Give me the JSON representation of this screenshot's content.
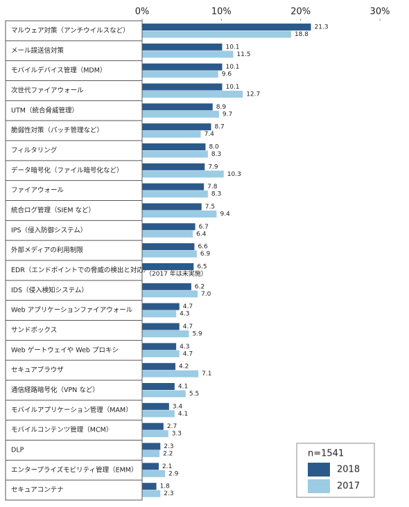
{
  "chart_data": {
    "type": "bar",
    "orientation": "horizontal",
    "categories": [
      "マルウェア対策（アンチウイルスなど）",
      "メール誤送信対策",
      "モバイルデバイス管理（MDM）",
      "次世代ファイアウォール",
      "UTM（統合脅威管理）",
      "脆弱性対策（パッチ管理など）",
      "フィルタリング",
      "データ暗号化（ファイル暗号化など）",
      "ファイアウォール",
      "統合ログ管理（SIEM など）",
      "IPS（侵入防御システム）",
      "外部メディアの利用制限",
      "EDR（エンドポイントでの脅威の検出と対応）",
      "IDS（侵入検知システム）",
      "Web アプリケーションファイアウォール",
      "サンドボックス",
      "Web ゲートウェイや Web プロキシ",
      "セキュアブラウザ",
      "通信経路暗号化（VPN など）",
      "モバイルアプリケーション管理（MAM）",
      "モバイルコンテンツ管理（MCM）",
      "DLP",
      "エンタープライズモビリティ管理（EMM）",
      "セキュアコンテナ"
    ],
    "series": [
      {
        "name": "2018",
        "color": "#2b5a8a",
        "values": [
          21.3,
          10.1,
          10.1,
          10.1,
          8.9,
          8.7,
          8.0,
          7.9,
          7.8,
          7.5,
          6.7,
          6.6,
          6.5,
          6.2,
          4.7,
          4.7,
          4.3,
          4.2,
          4.1,
          3.4,
          2.7,
          2.3,
          2.1,
          1.8
        ],
        "value_labels": [
          "21.3",
          "10.1",
          "10.1",
          "10.1",
          "8.9",
          "8.7",
          "8.0",
          "7.9",
          "7.8",
          "7.5",
          "6.7",
          "6.6",
          "6.5",
          "6.2",
          "4.7",
          "4.7",
          "4.3",
          "4.2",
          "4.1",
          "3.4",
          "2.7",
          "2.3",
          "2.1",
          "1.8"
        ]
      },
      {
        "name": "2017",
        "color": "#9ccbe4",
        "values": [
          18.8,
          11.5,
          9.6,
          12.7,
          9.7,
          7.4,
          8.3,
          10.3,
          8.3,
          9.4,
          6.4,
          6.9,
          null,
          7.0,
          4.3,
          5.9,
          4.7,
          7.1,
          5.5,
          4.1,
          3.3,
          2.2,
          2.9,
          2.3
        ],
        "value_labels": [
          "18.8",
          "11.5",
          "9.6",
          "12.7",
          "9.7",
          "7.4",
          "8.3",
          "10.3",
          "8.3",
          "9.4",
          "6.4",
          "6.9",
          "（2017 年は未実施）",
          "7.0",
          "4.3",
          "5.9",
          "4.7",
          "7.1",
          "5.5",
          "4.1",
          "3.3",
          "2.2",
          "2.9",
          "2.3"
        ]
      }
    ],
    "xlim": [
      0,
      30
    ],
    "xticks": [
      {
        "value": 0,
        "label": "0%"
      },
      {
        "value": 10,
        "label": "10%"
      },
      {
        "value": 20,
        "label": "20%"
      },
      {
        "value": 30,
        "label": "30%"
      }
    ],
    "legend_title": "n=1541",
    "legend_position": "lower right",
    "grid": false
  }
}
